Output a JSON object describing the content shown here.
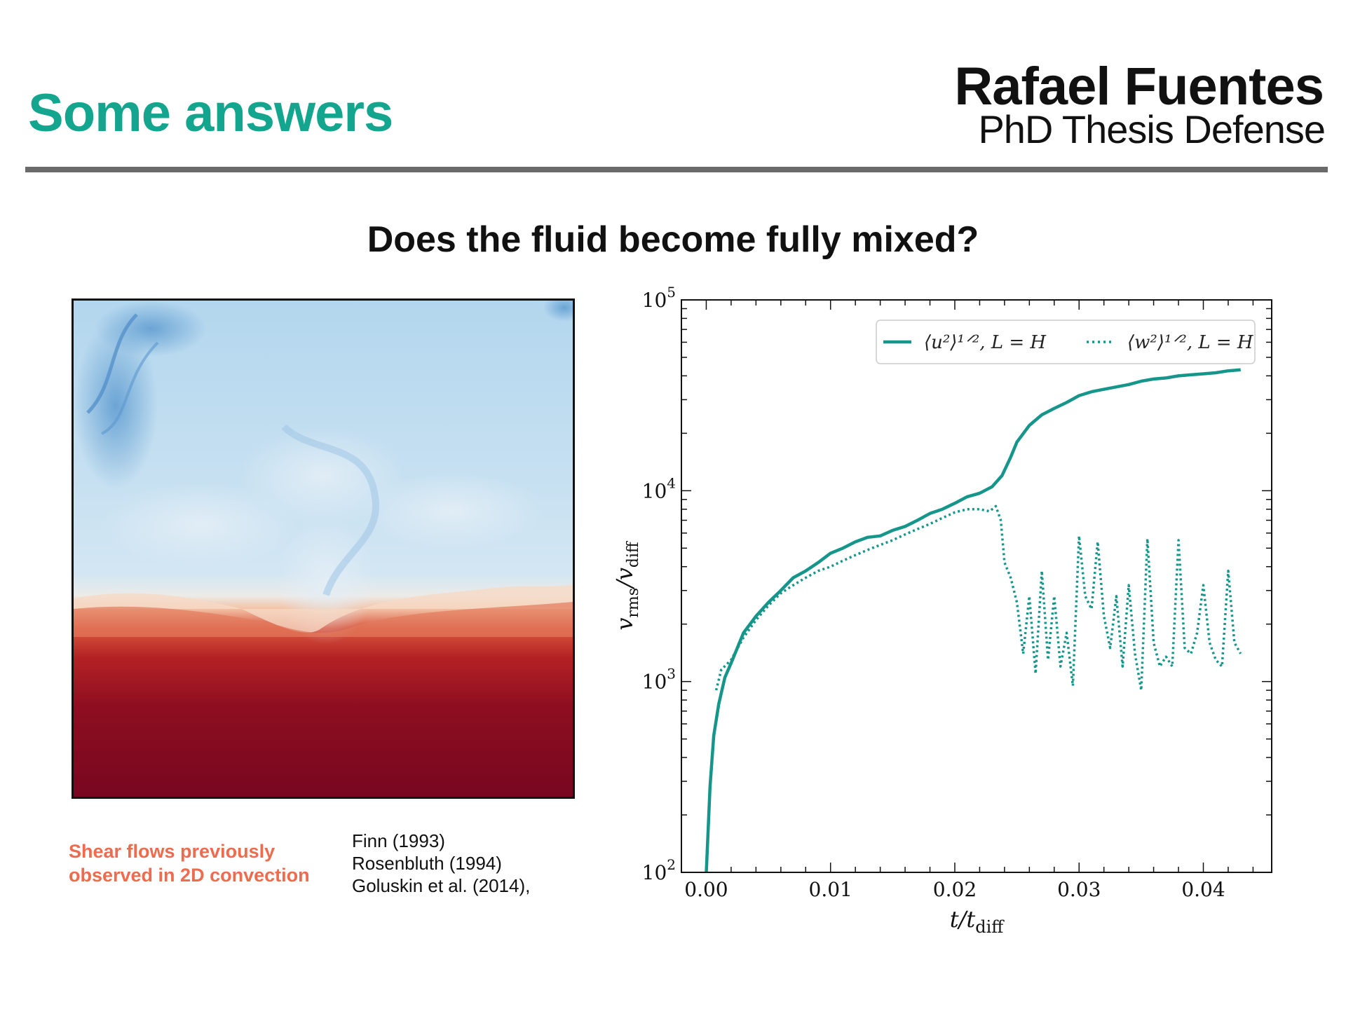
{
  "header": {
    "title": "Some answers",
    "author": "Rafael Fuentes",
    "subtitle": "PhD Thesis Defense"
  },
  "question": "Does the fluid become fully mixed?",
  "notes": {
    "shear_line1": "Shear flows previously",
    "shear_line2": "observed in 2D convection",
    "refs": [
      "Finn (1993)",
      "Rosenbluth  (1994)",
      "Goluskin et al. (2014),"
    ],
    "accent_color": "#ee6b4d"
  },
  "colors": {
    "title": "#14a58e",
    "series": "#16958a",
    "rule": "#6b6b6b"
  },
  "chart_data": {
    "type": "line",
    "y_scale": "log",
    "xlim": [
      -0.002,
      0.0455
    ],
    "ylim": [
      100,
      100000
    ],
    "x_ticks": [
      {
        "value": 0.0,
        "label": "0.00"
      },
      {
        "value": 0.01,
        "label": "0.01"
      },
      {
        "value": 0.02,
        "label": "0.02"
      },
      {
        "value": 0.03,
        "label": "0.03"
      },
      {
        "value": 0.04,
        "label": "0.04"
      }
    ],
    "y_ticks": [
      {
        "value": 100,
        "base": "10",
        "exp": "2"
      },
      {
        "value": 1000,
        "base": "10",
        "exp": "3"
      },
      {
        "value": 10000,
        "base": "10",
        "exp": "4"
      },
      {
        "value": 100000,
        "base": "10",
        "exp": "5"
      }
    ],
    "xlabel": {
      "main": "t/t",
      "sub": "diff"
    },
    "ylabel": {
      "v": "v",
      "sub1": "rms",
      "slash": "/v",
      "sub2": "diff"
    },
    "legend_position": "top-right",
    "series": [
      {
        "name": "⟨u²⟩¹ᐟ², L = H",
        "style": "solid",
        "x": [
          0.0,
          0.0003,
          0.0006,
          0.001,
          0.0015,
          0.002,
          0.003,
          0.004,
          0.005,
          0.006,
          0.007,
          0.008,
          0.009,
          0.01,
          0.011,
          0.012,
          0.013,
          0.014,
          0.015,
          0.016,
          0.017,
          0.018,
          0.019,
          0.02,
          0.021,
          0.022,
          0.023,
          0.0238,
          0.0245,
          0.025,
          0.026,
          0.027,
          0.028,
          0.029,
          0.03,
          0.031,
          0.032,
          0.033,
          0.034,
          0.035,
          0.036,
          0.037,
          0.038,
          0.039,
          0.04,
          0.041,
          0.042,
          0.043
        ],
        "y": [
          100,
          280,
          520,
          760,
          1050,
          1250,
          1800,
          2200,
          2600,
          3000,
          3500,
          3800,
          4200,
          4700,
          5000,
          5400,
          5700,
          5800,
          6200,
          6500,
          7000,
          7600,
          8000,
          8600,
          9300,
          9700,
          10500,
          12000,
          15000,
          18000,
          22000,
          25000,
          27000,
          29000,
          31500,
          33000,
          34000,
          35000,
          36000,
          37500,
          38500,
          39000,
          40000,
          40500,
          41000,
          41500,
          42500,
          43000
        ]
      },
      {
        "name": "⟨w²⟩¹ᐟ², L = H",
        "style": "dotted",
        "x": [
          0.0008,
          0.0012,
          0.002,
          0.003,
          0.004,
          0.005,
          0.006,
          0.007,
          0.008,
          0.009,
          0.01,
          0.011,
          0.012,
          0.013,
          0.014,
          0.015,
          0.016,
          0.017,
          0.018,
          0.019,
          0.02,
          0.021,
          0.022,
          0.0228,
          0.0233,
          0.0237,
          0.024,
          0.0245,
          0.025,
          0.0255,
          0.026,
          0.0265,
          0.027,
          0.0275,
          0.028,
          0.0285,
          0.029,
          0.0295,
          0.03,
          0.0305,
          0.031,
          0.0315,
          0.032,
          0.0325,
          0.033,
          0.0335,
          0.034,
          0.0345,
          0.035,
          0.0355,
          0.036,
          0.0365,
          0.037,
          0.0375,
          0.038,
          0.0385,
          0.039,
          0.0395,
          0.04,
          0.0405,
          0.041,
          0.0415,
          0.042,
          0.0425,
          0.043
        ],
        "y": [
          900,
          1150,
          1300,
          1700,
          2100,
          2500,
          2900,
          3200,
          3500,
          3800,
          4000,
          4300,
          4600,
          4900,
          5200,
          5500,
          5900,
          6300,
          6700,
          7200,
          7700,
          8000,
          8000,
          7800,
          8300,
          7000,
          4200,
          3500,
          2600,
          1400,
          2800,
          1100,
          3800,
          1300,
          2800,
          1200,
          1800,
          950,
          5800,
          2800,
          2400,
          5400,
          2200,
          1500,
          2800,
          1200,
          3200,
          1400,
          900,
          5600,
          1600,
          1200,
          1350,
          1200,
          5500,
          1500,
          1400,
          1800,
          3200,
          1600,
          1300,
          1200,
          3800,
          1600,
          1400
        ]
      }
    ]
  }
}
